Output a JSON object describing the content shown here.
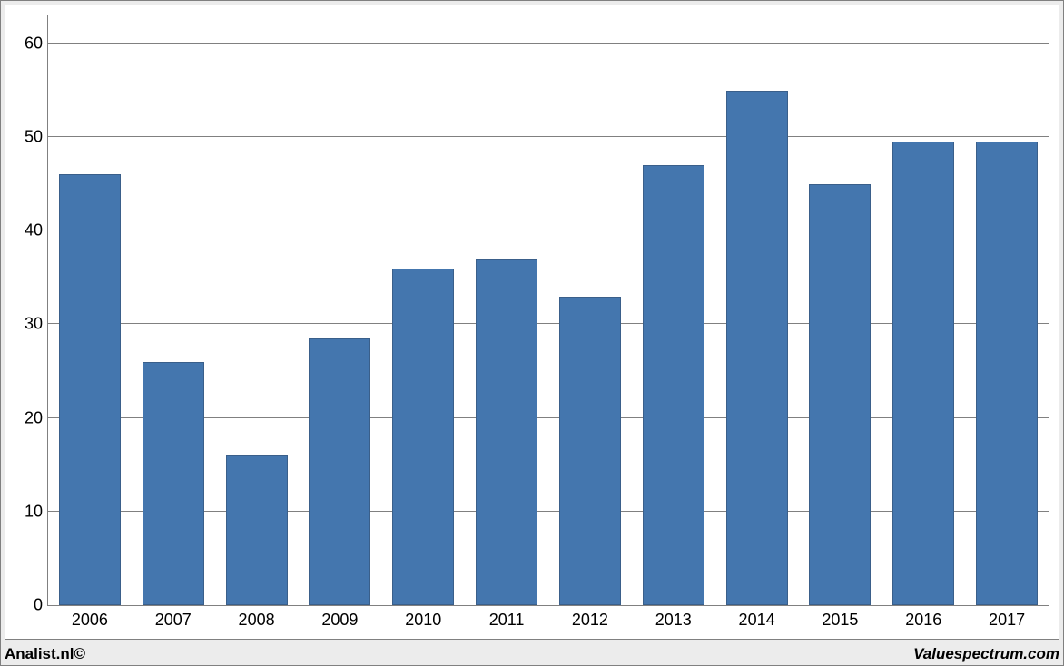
{
  "chart": {
    "type": "bar",
    "categories": [
      "2006",
      "2007",
      "2008",
      "2009",
      "2010",
      "2011",
      "2012",
      "2013",
      "2014",
      "2015",
      "2016",
      "2017"
    ],
    "values": [
      46.0,
      26.0,
      16.0,
      28.5,
      36.0,
      37.0,
      33.0,
      47.0,
      55.0,
      45.0,
      49.5,
      49.5
    ],
    "bar_color": "#4476ae",
    "bar_border_color": "#3a5f8a",
    "bar_width_ratio": 0.74,
    "ylim": [
      0,
      63
    ],
    "yticks": [
      0,
      10,
      20,
      30,
      40,
      50,
      60
    ],
    "grid_color": "#808080",
    "background_color": "#ffffff",
    "frame_background": "#ececec",
    "axis_fontsize": 18,
    "axis_color": "#000000"
  },
  "footer": {
    "left": "Analist.nl©",
    "right": "Valuespectrum.com"
  }
}
